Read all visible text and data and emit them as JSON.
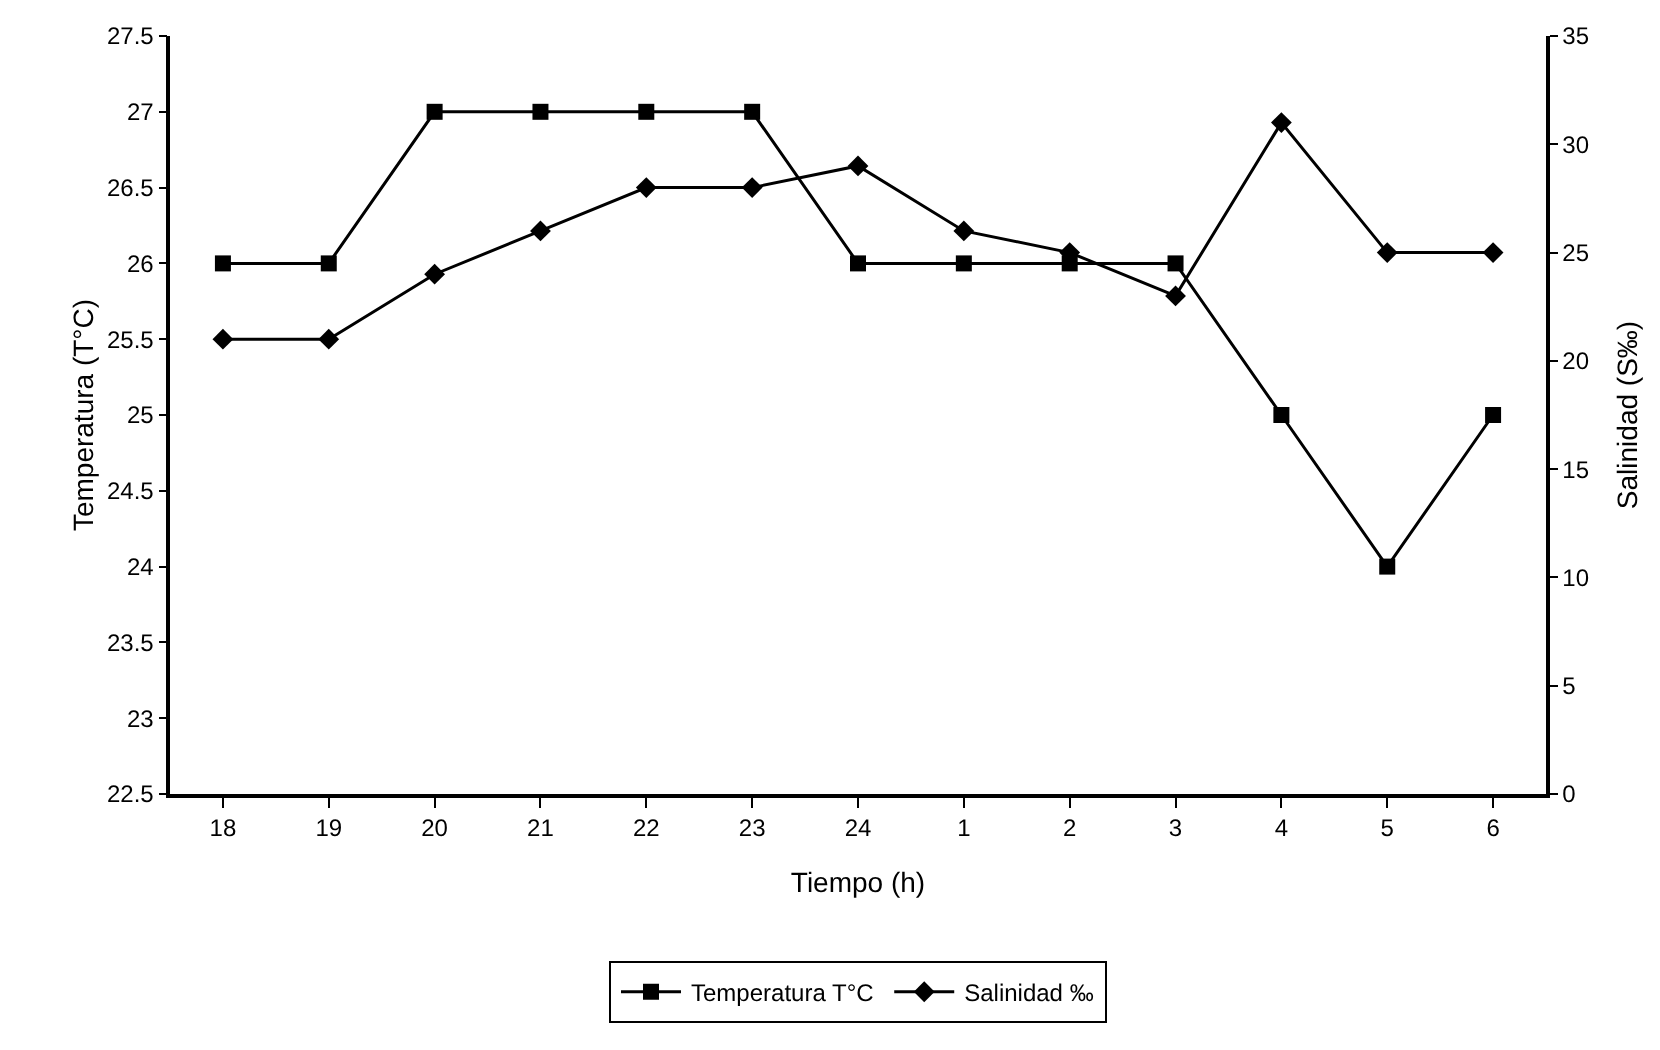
{
  "chart_data": {
    "type": "line",
    "xlabel": "Tiempo (h)",
    "ylabel": "Temperatura (T°C)",
    "y2label": "Salinidad (S‰)",
    "categories": [
      "18",
      "19",
      "20",
      "21",
      "22",
      "23",
      "24",
      "1",
      "2",
      "3",
      "4",
      "5",
      "6"
    ],
    "series": [
      {
        "name": "Temperatura T°C",
        "color": "#000000",
        "marker": "square",
        "values": [
          26,
          26,
          27,
          27,
          27,
          27,
          26,
          26,
          26,
          26,
          25,
          24,
          25
        ]
      },
      {
        "name": "Salinidad ‰",
        "color": "#000000",
        "marker": "diamond",
        "axis": "y2",
        "values": [
          21,
          21,
          24,
          26,
          28,
          28,
          29,
          26,
          25,
          23,
          31,
          25,
          25
        ]
      }
    ],
    "ylim": [
      22.5,
      27.5
    ],
    "yticks": [
      22.5,
      23,
      23.5,
      24,
      24.5,
      25,
      25.5,
      26,
      26.5,
      27,
      27.5
    ],
    "y2lim": [
      0,
      35
    ],
    "y2ticks": [
      0,
      5,
      10,
      15,
      20,
      25,
      30,
      35
    ],
    "grid": false,
    "legend": "bottom",
    "line_style": "solid"
  }
}
